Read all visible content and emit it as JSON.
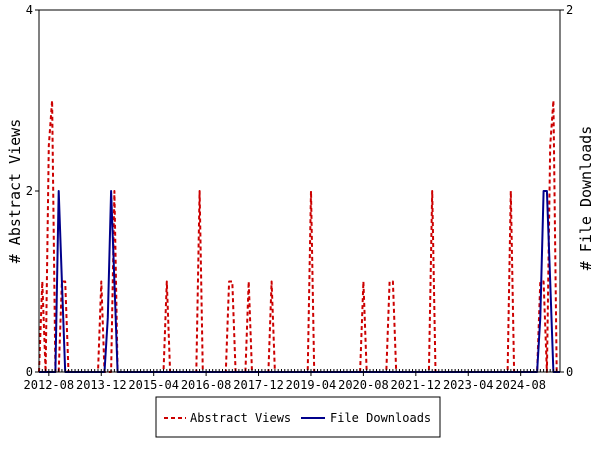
{
  "chart_data": {
    "type": "line",
    "x_tick_labels": [
      "2012-08",
      "2013-12",
      "2015-04",
      "2016-08",
      "2017-12",
      "2019-04",
      "2020-08",
      "2021-12",
      "2023-04",
      "2024-08"
    ],
    "left_axis": {
      "label": "# Abstract Views",
      "range": [
        0,
        4
      ],
      "ticks": [
        "0",
        "2",
        "4"
      ]
    },
    "right_axis": {
      "label": "# File Downloads",
      "range": [
        0,
        2
      ],
      "ticks": [
        "0",
        "2"
      ]
    },
    "x_range": [
      "2012-05",
      "2025-08"
    ],
    "grid": false,
    "legend_position": "bottom",
    "series": [
      {
        "name": "Abstract Views",
        "axis": "left",
        "color": "#cc0000",
        "style": "dashed",
        "points": [
          [
            "2012-05",
            0
          ],
          [
            "2012-06",
            1
          ],
          [
            "2012-07",
            0
          ],
          [
            "2012-08",
            2.5
          ],
          [
            "2012-09",
            3
          ],
          [
            "2012-10",
            0
          ],
          [
            "2012-11",
            0
          ],
          [
            "2012-12",
            1
          ],
          [
            "2013-01",
            1
          ],
          [
            "2013-02",
            0
          ],
          [
            "2013-10",
            0
          ],
          [
            "2013-11",
            0
          ],
          [
            "2013-12",
            1
          ],
          [
            "2014-01",
            0
          ],
          [
            "2014-03",
            0
          ],
          [
            "2014-04",
            2
          ],
          [
            "2014-05",
            0
          ],
          [
            "2015-07",
            0
          ],
          [
            "2015-08",
            1
          ],
          [
            "2015-09",
            0
          ],
          [
            "2016-05",
            0
          ],
          [
            "2016-06",
            2
          ],
          [
            "2016-07",
            0
          ],
          [
            "2017-02",
            0
          ],
          [
            "2017-03",
            1
          ],
          [
            "2017-04",
            1
          ],
          [
            "2017-05",
            0
          ],
          [
            "2017-08",
            0
          ],
          [
            "2017-09",
            1
          ],
          [
            "2017-10",
            0
          ],
          [
            "2018-03",
            0
          ],
          [
            "2018-04",
            1
          ],
          [
            "2018-05",
            0
          ],
          [
            "2019-03",
            0
          ],
          [
            "2019-04",
            2
          ],
          [
            "2019-05",
            0
          ],
          [
            "2020-07",
            0
          ],
          [
            "2020-08",
            1
          ],
          [
            "2020-09",
            0
          ],
          [
            "2021-03",
            0
          ],
          [
            "2021-04",
            1
          ],
          [
            "2021-05",
            1
          ],
          [
            "2021-06",
            0
          ],
          [
            "2022-04",
            0
          ],
          [
            "2022-05",
            2
          ],
          [
            "2022-06",
            0
          ],
          [
            "2024-04",
            0
          ],
          [
            "2024-05",
            2
          ],
          [
            "2024-06",
            0
          ],
          [
            "2025-01",
            0
          ],
          [
            "2025-02",
            1
          ],
          [
            "2025-03",
            1
          ],
          [
            "2025-04",
            0
          ],
          [
            "2025-05",
            2.5
          ],
          [
            "2025-06",
            3
          ],
          [
            "2025-07",
            0
          ],
          [
            "2025-08",
            0
          ]
        ]
      },
      {
        "name": "File Downloads",
        "axis": "right",
        "color": "#00008b",
        "style": "solid",
        "points": [
          [
            "2012-05",
            0
          ],
          [
            "2012-10",
            0
          ],
          [
            "2012-11",
            1
          ],
          [
            "2012-12",
            0.5
          ],
          [
            "2013-01",
            0
          ],
          [
            "2014-01",
            0
          ],
          [
            "2014-02",
            0.3
          ],
          [
            "2014-03",
            1
          ],
          [
            "2014-04",
            0.5
          ],
          [
            "2014-05",
            0
          ],
          [
            "2025-01",
            0
          ],
          [
            "2025-02",
            0.3
          ],
          [
            "2025-03",
            1
          ],
          [
            "2025-04",
            1
          ],
          [
            "2025-05",
            0.5
          ],
          [
            "2025-06",
            0
          ],
          [
            "2025-08",
            0
          ]
        ]
      }
    ]
  }
}
